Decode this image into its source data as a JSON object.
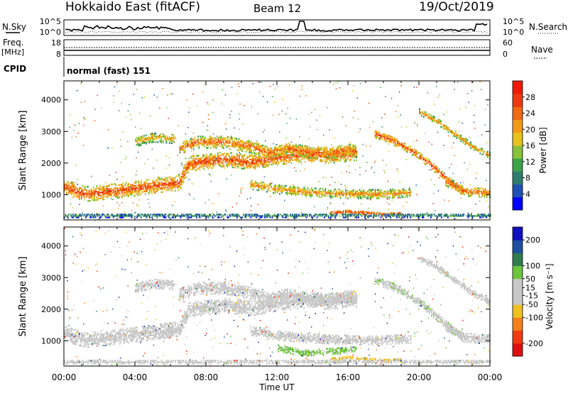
{
  "header": {
    "station": "Hokkaido East (fitACF)",
    "beam": "Beam 12",
    "date": "19/Oct/2019"
  },
  "strip_labels": {
    "nsky": "N.Sky",
    "nsearch": "N.Search",
    "freq_line1": "Freq.",
    "freq_line2": "[MHz]",
    "nave": "Nave",
    "cpid": "CPID",
    "noise_left_ticks": [
      "10^5",
      "10^0"
    ],
    "noise_right_ticks": [
      "10^5",
      "10^0"
    ],
    "freq_left_ticks": [
      "18",
      "8"
    ],
    "freq_right_ticks": [
      "60",
      "0"
    ],
    "cpid_text": "normal (fast) 151"
  },
  "colors": {
    "power_scale": [
      "#0000ff",
      "#1f4fb4",
      "#2f7d6f",
      "#3aa34a",
      "#88c13a",
      "#e6c21c",
      "#f39a1a",
      "#f06a14",
      "#ee3a10",
      "#ee1a08"
    ],
    "velocity_scale": [
      "#e01010",
      "#f03c10",
      "#f5801a",
      "#f0c020",
      "#c8c8c8",
      "#c8c8c8",
      "#6cc43c",
      "#2f7d4f",
      "#1f4f9f",
      "#1010c0"
    ]
  },
  "chart_data": [
    {
      "type": "heatmap",
      "title": "Power",
      "xlabel": "",
      "ylabel": "Slant Range [km]",
      "x_tick_labels": [
        "00:00",
        "04:00",
        "08:00",
        "12:00",
        "16:00",
        "20:00",
        "00:00"
      ],
      "xlim_hours": [
        0,
        24
      ],
      "ylim": [
        200,
        4600
      ],
      "y_tick_labels": [
        "1000",
        "2000",
        "3000",
        "4000"
      ],
      "y_ticks": [
        1000,
        2000,
        3000,
        4000
      ],
      "colorbar": {
        "label": "Power [dB]",
        "range": [
          0,
          32
        ],
        "tick_labels": [
          "4",
          "8",
          "12",
          "16",
          "20",
          "24",
          "28"
        ],
        "ticks": [
          4,
          8,
          12,
          16,
          20,
          24,
          28
        ]
      },
      "echo_bands": [
        {
          "t": [
            0,
            1.2,
            3,
            5,
            6.5,
            7,
            9,
            10.5,
            12,
            13.5,
            15,
            16.5
          ],
          "r": [
            1200,
            1000,
            1100,
            1250,
            1350,
            1950,
            2100,
            2000,
            2150,
            2250,
            2200,
            2300
          ],
          "width": 450,
          "level": 26
        },
        {
          "t": [
            6.5,
            7.5,
            9,
            10.5,
            11.5,
            12.5,
            13.5,
            15,
            16,
            16.5
          ],
          "r": [
            2450,
            2650,
            2650,
            2500,
            2300,
            2450,
            2350,
            2300,
            2400,
            2350
          ],
          "width": 380,
          "level": 24
        },
        {
          "t": [
            4,
            5,
            6.2
          ],
          "r": [
            2650,
            2800,
            2750
          ],
          "width": 300,
          "level": 20
        },
        {
          "t": [
            10.5,
            12,
            14,
            16,
            18,
            19.5
          ],
          "r": [
            1300,
            1150,
            1050,
            1000,
            1000,
            1050
          ],
          "width": 280,
          "level": 22
        },
        {
          "t": [
            17.5,
            18.5,
            19.5,
            20.5,
            21.5,
            22.5
          ],
          "r": [
            2900,
            2700,
            2400,
            2000,
            1500,
            1100
          ],
          "width": 260,
          "level": 26
        },
        {
          "t": [
            20,
            21,
            22,
            23,
            24
          ],
          "r": [
            3600,
            3300,
            2900,
            2500,
            2200
          ],
          "width": 180,
          "level": 22
        },
        {
          "t": [
            21.5,
            22.5,
            23.5,
            24
          ],
          "r": [
            1400,
            1100,
            1050,
            1050
          ],
          "width": 300,
          "level": 24
        },
        {
          "t": [
            15,
            16,
            17,
            18,
            19
          ],
          "r": [
            400,
            450,
            400,
            350,
            380
          ],
          "width": 120,
          "level": 28
        },
        {
          "t": [
            0,
            24
          ],
          "r": [
            320,
            320
          ],
          "width": 120,
          "level": 12
        }
      ]
    },
    {
      "type": "heatmap",
      "title": "Velocity",
      "xlabel": "Time UT",
      "ylabel": "Slant Range [km]",
      "x_tick_labels": [
        "00:00",
        "04:00",
        "08:00",
        "12:00",
        "16:00",
        "20:00",
        "00:00"
      ],
      "xlim_hours": [
        0,
        24
      ],
      "ylim": [
        200,
        4600
      ],
      "y_tick_labels": [
        "1000",
        "2000",
        "3000",
        "4000"
      ],
      "y_ticks": [
        1000,
        2000,
        3000,
        4000
      ],
      "colorbar": {
        "label": "Velocity [m s⁻¹]",
        "range": [
          -250,
          250
        ],
        "tick_labels": [
          "-200",
          "-100",
          "-50",
          "-15",
          "15",
          "50",
          "100",
          "200"
        ],
        "ticks": [
          -200,
          -100,
          -50,
          -15,
          15,
          50,
          100,
          200
        ]
      },
      "echo_bands": [
        {
          "t": [
            0,
            1.2,
            3,
            5,
            6.5,
            7,
            9,
            10.5,
            12,
            13.5,
            15,
            16.5
          ],
          "r": [
            1200,
            1000,
            1100,
            1250,
            1350,
            1950,
            2100,
            2000,
            2150,
            2250,
            2200,
            2300
          ],
          "width": 450,
          "level": 0
        },
        {
          "t": [
            6.5,
            7.5,
            9,
            10.5,
            11.5,
            12.5,
            13.5,
            15,
            16,
            16.5
          ],
          "r": [
            2450,
            2650,
            2650,
            2500,
            2300,
            2450,
            2350,
            2300,
            2400,
            2350
          ],
          "width": 380,
          "level": 0
        },
        {
          "t": [
            4,
            5,
            6.2
          ],
          "r": [
            2650,
            2800,
            2750
          ],
          "width": 300,
          "level": -30
        },
        {
          "t": [
            10.5,
            12,
            14,
            16,
            18,
            19.5
          ],
          "r": [
            1300,
            1150,
            1050,
            1000,
            1000,
            1050
          ],
          "width": 280,
          "level": 5
        },
        {
          "t": [
            17.5,
            18.5,
            19.5,
            20.5,
            21.5,
            22.5
          ],
          "r": [
            2900,
            2700,
            2400,
            2000,
            1500,
            1100
          ],
          "width": 260,
          "level": 40
        },
        {
          "t": [
            20,
            21,
            22,
            23,
            24
          ],
          "r": [
            3600,
            3300,
            2900,
            2500,
            2200
          ],
          "width": 180,
          "level": 20
        },
        {
          "t": [
            21.5,
            22.5,
            23.5,
            24
          ],
          "r": [
            1400,
            1100,
            1050,
            1050
          ],
          "width": 300,
          "level": 0
        },
        {
          "t": [
            12,
            13.5,
            15,
            16.5
          ],
          "r": [
            750,
            600,
            650,
            700
          ],
          "width": 200,
          "level": 60
        },
        {
          "t": [
            15,
            16,
            17,
            18,
            19
          ],
          "r": [
            400,
            450,
            400,
            350,
            380
          ],
          "width": 120,
          "level": -60
        },
        {
          "t": [
            0,
            24
          ],
          "r": [
            320,
            320
          ],
          "width": 120,
          "level": 0
        }
      ]
    }
  ]
}
